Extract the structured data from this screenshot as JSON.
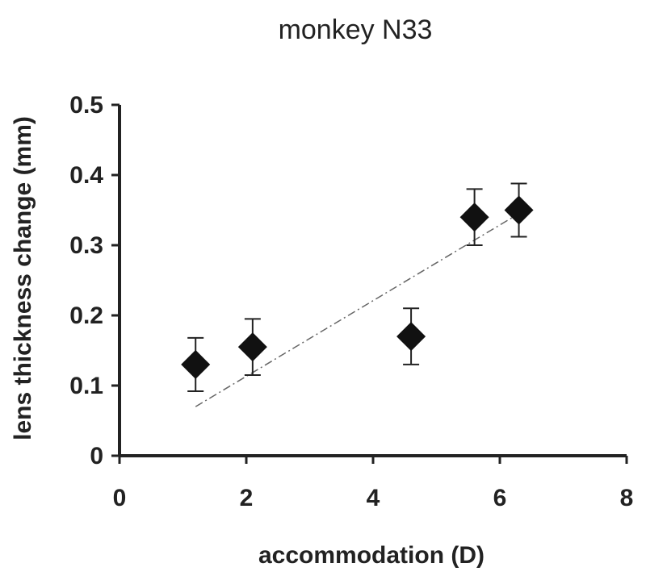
{
  "chart_data": {
    "type": "scatter",
    "title": "monkey N33",
    "xlabel": "accommodation (D)",
    "ylabel": "lens thickness change (mm)",
    "xlim": [
      0,
      8
    ],
    "ylim": [
      0,
      0.5
    ],
    "xticks": [
      "0",
      "2",
      "4",
      "6",
      "8"
    ],
    "yticks": [
      "0",
      "0.1",
      "0.2",
      "0.3",
      "0.4",
      "0.5"
    ],
    "grid": false,
    "series": [
      {
        "marker": "diamond",
        "color": "#111111",
        "points": [
          {
            "x": 1.2,
            "y": 0.13,
            "err": 0.038
          },
          {
            "x": 2.1,
            "y": 0.155,
            "err": 0.04
          },
          {
            "x": 4.6,
            "y": 0.17,
            "err": 0.04
          },
          {
            "x": 5.6,
            "y": 0.34,
            "err": 0.04
          },
          {
            "x": 6.3,
            "y": 0.35,
            "err": 0.038
          }
        ]
      }
    ],
    "trendline": {
      "style": "dash-dot",
      "color": "#666666",
      "x": [
        1.2,
        6.3
      ],
      "y": [
        0.07,
        0.345
      ]
    }
  }
}
